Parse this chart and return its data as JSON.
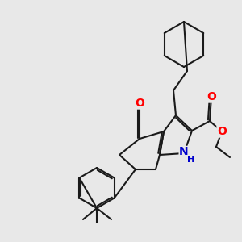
{
  "bg_color": "#e8e8e8",
  "bond_color": "#1a1a1a",
  "bond_width": 1.5,
  "atom_colors": {
    "O": "#ff0000",
    "N": "#0000cd",
    "C": "#1a1a1a"
  },
  "font_size_atom": 10,
  "fig_size": [
    3.0,
    3.0
  ],
  "dpi": 100
}
